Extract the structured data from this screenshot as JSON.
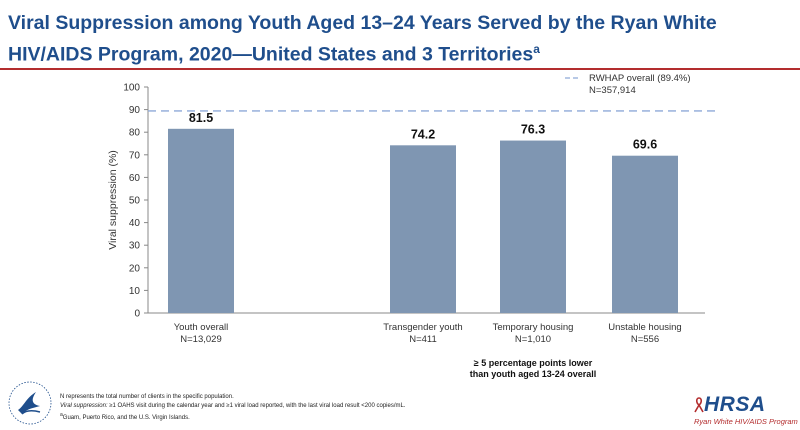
{
  "title": {
    "text": "Viral Suppression among Youth Aged 13–24 Years Served by the Ryan White HIV/AIDS Program, 2020—United States and 3 Territories",
    "superscript": "a"
  },
  "chart_data": {
    "type": "bar",
    "categories": [
      "Youth overall",
      "Transgender youth",
      "Temporary housing",
      "Unstable housing"
    ],
    "category_counts": [
      "N=13,029",
      "N=411",
      "N=1,010",
      "N=556"
    ],
    "values": [
      81.5,
      74.2,
      76.3,
      69.6
    ],
    "value_labels": [
      "81.5",
      "74.2",
      "76.3",
      "69.6"
    ],
    "ylabel": "Viral suppression (%)",
    "ylim": [
      0,
      100
    ],
    "yticks": [
      "0",
      "10",
      "20",
      "30",
      "40",
      "50",
      "60",
      "70",
      "80",
      "90",
      "100"
    ],
    "reference_line": {
      "value": 89.4,
      "label": "RWHAP overall (89.4%)",
      "sublabel": "N=357,914"
    },
    "annotation": {
      "line1": "≥ 5 percentage points lower",
      "line2": "than youth aged 13-24 overall"
    },
    "colors": {
      "bar": "#7f96b2",
      "reference": "#8ea9d8",
      "title": "#1f4e8c",
      "rule": "#b32d2e"
    }
  },
  "footnotes": {
    "n_note": "N represents the total number of clients in the specific population.",
    "vs_term": "Viral suppression:",
    "vs_note": " ≥1 OAHS visit during the calendar year and ≥1 viral load reported, with the last viral load result <200 copies/mL.",
    "a_mark": "a",
    "a_note": "Guam, Puerto Rico, and the U.S. Virgin Islands."
  },
  "logos": {
    "hrsa_word": "HRSA",
    "hrsa_sub": "Ryan White HIV/AIDS Program"
  }
}
